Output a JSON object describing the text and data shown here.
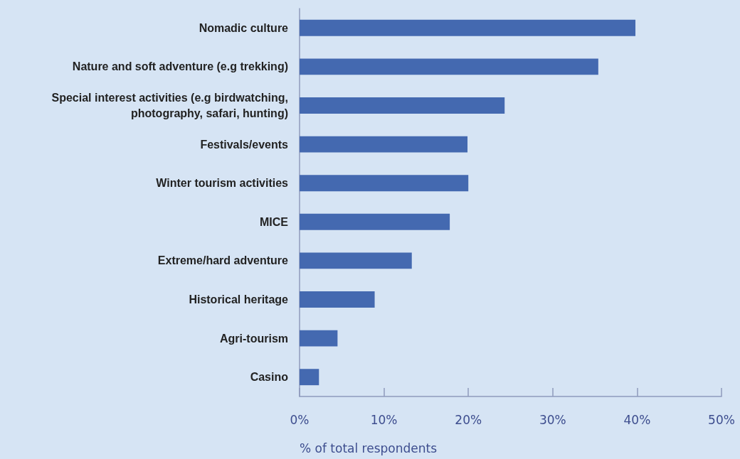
{
  "chart_data": {
    "type": "bar",
    "orientation": "horizontal",
    "xlabel": "% of total respondents",
    "categories": [
      "Nomadic culture",
      "Nature and soft adventure (e.g trekking)",
      "Special interest activities (e.g birdwatching,\nphotography, safari, hunting)",
      "Festivals/events",
      "Winter tourism activities",
      "MICE",
      "Extreme/hard adventure",
      "Historical heritage",
      "Agri-tourism",
      "Casino"
    ],
    "values": [
      39.8,
      35.4,
      24.3,
      19.9,
      20.0,
      17.8,
      13.3,
      8.9,
      4.5,
      2.3
    ],
    "color": "#4469b0",
    "xlim": [
      0,
      50
    ],
    "xticks": [
      {
        "value": 0,
        "label": "0%"
      },
      {
        "value": 10,
        "label": "10%"
      },
      {
        "value": 20,
        "label": "20%"
      },
      {
        "value": 30,
        "label": "30%"
      },
      {
        "value": 40,
        "label": "40%"
      },
      {
        "value": 50,
        "label": "50%"
      }
    ],
    "grid": false
  }
}
